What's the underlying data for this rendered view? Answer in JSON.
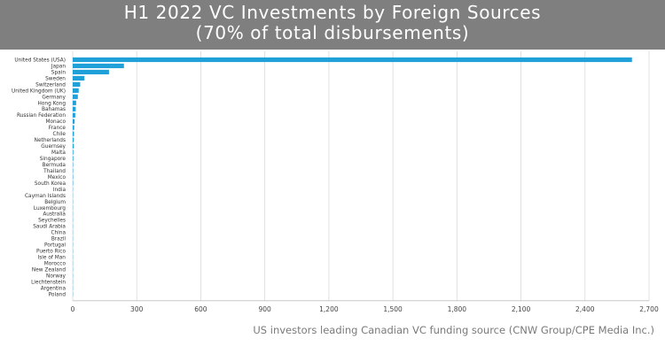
{
  "title": {
    "line1": "H1 2022 VC Investments by Foreign Sources",
    "line2": "(70% of total disbursements)"
  },
  "caption": "US investors leading Canadian VC funding source (CNW Group/CPE Media Inc.)",
  "colors": {
    "bar": "#1fa0d8",
    "grid": "#d9d9d9",
    "header": "#7f7f7f"
  },
  "chart_data": {
    "type": "bar",
    "orientation": "horizontal",
    "categories": [
      "United States (USA)",
      "Japan",
      "Spain",
      "Sweden",
      "Switzerland",
      "United Kingdom (UK)",
      "Germany",
      "Hong Kong",
      "Bahamas",
      "Russian Federation",
      "Monaco",
      "France",
      "Chile",
      "Netherlands",
      "Guernsey",
      "Malta",
      "Singapore",
      "Bermuda",
      "Thailand",
      "Mexico",
      "South Korea",
      "India",
      "Cayman Islands",
      "Belgium",
      "Luxembourg",
      "Australia",
      "Seychelles",
      "Saudi Arabia",
      "China",
      "Brazil",
      "Portugal",
      "Puerto Rico",
      "Isle of Man",
      "Morocco",
      "New Zealand",
      "Norway",
      "Liechtenstein",
      "Argentina",
      "Poland"
    ],
    "values": [
      2620,
      240,
      170,
      55,
      35,
      28,
      24,
      16,
      14,
      12,
      9,
      7,
      6,
      5,
      5,
      3,
      3,
      2,
      2,
      2,
      2,
      1,
      1,
      1,
      1,
      1,
      1,
      1,
      1,
      1,
      1,
      1,
      1,
      1,
      1,
      1,
      1,
      1,
      1
    ],
    "xlim": [
      0,
      2700
    ],
    "xticks": [
      0,
      300,
      600,
      900,
      1200,
      1500,
      1800,
      2100,
      2400,
      2700
    ],
    "xtick_labels": [
      "0",
      "300",
      "600",
      "900",
      "1,200",
      "1,500",
      "1,800",
      "2,100",
      "2,400",
      "2,700"
    ],
    "grid": "vertical",
    "legend": "none"
  }
}
